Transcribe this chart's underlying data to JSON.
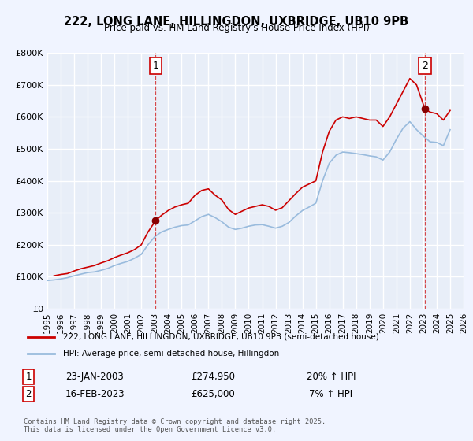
{
  "title": "222, LONG LANE, HILLINGDON, UXBRIDGE, UB10 9PB",
  "subtitle": "Price paid vs. HM Land Registry's House Price Index (HPI)",
  "background_color": "#f0f4ff",
  "plot_background": "#e8eef8",
  "grid_color": "#ffffff",
  "xlabel": "",
  "ylabel": "",
  "ylim": [
    0,
    800000
  ],
  "xlim_start": 1995,
  "xlim_end": 2026,
  "yticks": [
    0,
    100000,
    200000,
    300000,
    400000,
    500000,
    600000,
    700000,
    800000
  ],
  "ytick_labels": [
    "£0",
    "£100K",
    "£200K",
    "£300K",
    "£400K",
    "£500K",
    "£600K",
    "£700K",
    "£800K"
  ],
  "xticks": [
    1995,
    1996,
    1997,
    1998,
    1999,
    2000,
    2001,
    2002,
    2003,
    2004,
    2005,
    2006,
    2007,
    2008,
    2009,
    2010,
    2011,
    2012,
    2013,
    2014,
    2015,
    2016,
    2017,
    2018,
    2019,
    2020,
    2021,
    2022,
    2023,
    2024,
    2025,
    2026
  ],
  "red_line_color": "#cc0000",
  "blue_line_color": "#99bbdd",
  "marker_color": "#880000",
  "transaction1_x": 2003.06,
  "transaction1_y": 274950,
  "transaction2_x": 2023.12,
  "transaction2_y": 625000,
  "vline1_x": 2003.06,
  "vline2_x": 2023.12,
  "legend_label_red": "222, LONG LANE, HILLINGDON, UXBRIDGE, UB10 9PB (semi-detached house)",
  "legend_label_blue": "HPI: Average price, semi-detached house, Hillingdon",
  "annotation1_label": "1",
  "annotation2_label": "2",
  "table_row1": [
    "1",
    "23-JAN-2003",
    "£274,950",
    "20% ↑ HPI"
  ],
  "table_row2": [
    "2",
    "16-FEB-2023",
    "£625,000",
    "7% ↑ HPI"
  ],
  "footer": "Contains HM Land Registry data © Crown copyright and database right 2025.\nThis data is licensed under the Open Government Licence v3.0.",
  "red_hpi_years": [
    1995.5,
    1996.0,
    1996.5,
    1997.0,
    1997.5,
    1998.0,
    1998.5,
    1999.0,
    1999.5,
    2000.0,
    2000.5,
    2001.0,
    2001.5,
    2002.0,
    2002.5,
    2003.06,
    2003.5,
    2004.0,
    2004.5,
    2005.0,
    2005.5,
    2006.0,
    2006.5,
    2007.0,
    2007.5,
    2008.0,
    2008.5,
    2009.0,
    2009.5,
    2010.0,
    2010.5,
    2011.0,
    2011.5,
    2012.0,
    2012.5,
    2013.0,
    2013.5,
    2014.0,
    2014.5,
    2015.0,
    2015.5,
    2016.0,
    2016.5,
    2017.0,
    2017.5,
    2018.0,
    2018.5,
    2019.0,
    2019.5,
    2020.0,
    2020.5,
    2021.0,
    2021.5,
    2022.0,
    2022.5,
    2023.12,
    2023.5,
    2024.0,
    2024.5,
    2025.0
  ],
  "red_hpi_values": [
    103000,
    107000,
    110000,
    118000,
    125000,
    130000,
    135000,
    143000,
    150000,
    160000,
    168000,
    175000,
    185000,
    200000,
    240000,
    274950,
    292000,
    307000,
    318000,
    325000,
    330000,
    355000,
    370000,
    375000,
    355000,
    340000,
    310000,
    295000,
    305000,
    315000,
    320000,
    325000,
    320000,
    308000,
    316000,
    338000,
    360000,
    380000,
    390000,
    400000,
    490000,
    555000,
    590000,
    600000,
    595000,
    600000,
    595000,
    590000,
    590000,
    570000,
    600000,
    640000,
    680000,
    720000,
    700000,
    625000,
    615000,
    610000,
    590000,
    620000
  ],
  "blue_hpi_years": [
    1995.0,
    1995.5,
    1996.0,
    1996.5,
    1997.0,
    1997.5,
    1998.0,
    1998.5,
    1999.0,
    1999.5,
    2000.0,
    2000.5,
    2001.0,
    2001.5,
    2002.0,
    2002.5,
    2003.0,
    2003.5,
    2004.0,
    2004.5,
    2005.0,
    2005.5,
    2006.0,
    2006.5,
    2007.0,
    2007.5,
    2008.0,
    2008.5,
    2009.0,
    2009.5,
    2010.0,
    2010.5,
    2011.0,
    2011.5,
    2012.0,
    2012.5,
    2013.0,
    2013.5,
    2014.0,
    2014.5,
    2015.0,
    2015.5,
    2016.0,
    2016.5,
    2017.0,
    2017.5,
    2018.0,
    2018.5,
    2019.0,
    2019.5,
    2020.0,
    2020.5,
    2021.0,
    2021.5,
    2022.0,
    2022.5,
    2023.0,
    2023.5,
    2024.0,
    2024.5,
    2025.0
  ],
  "blue_hpi_values": [
    88000,
    90000,
    93000,
    97000,
    103000,
    108000,
    113000,
    115000,
    120000,
    126000,
    135000,
    142000,
    148000,
    158000,
    170000,
    200000,
    225000,
    240000,
    248000,
    255000,
    260000,
    262000,
    275000,
    288000,
    295000,
    285000,
    272000,
    255000,
    248000,
    252000,
    258000,
    262000,
    263000,
    258000,
    252000,
    258000,
    270000,
    290000,
    307000,
    318000,
    330000,
    400000,
    455000,
    480000,
    490000,
    488000,
    485000,
    482000,
    478000,
    475000,
    465000,
    490000,
    530000,
    565000,
    585000,
    560000,
    540000,
    522000,
    520000,
    510000,
    560000
  ]
}
